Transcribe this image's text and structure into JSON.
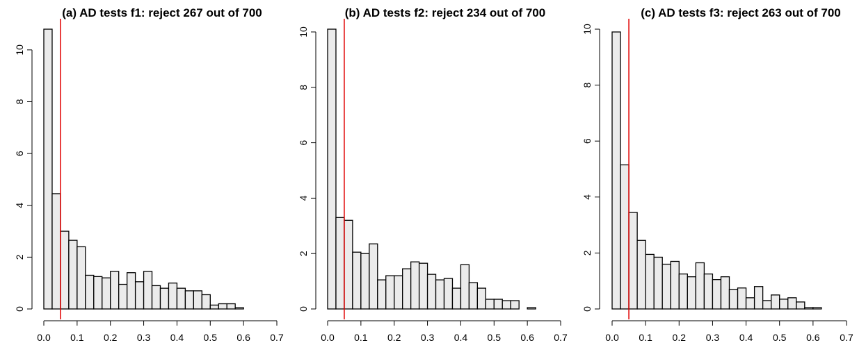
{
  "chart_data": [
    {
      "type": "bar",
      "subtype": "histogram",
      "title": "(a) AD tests f1: reject 267 out of 700",
      "xlabel": "",
      "ylabel": "",
      "bin_width": 0.025,
      "bin_start": 0.0,
      "values": [
        10.8,
        4.45,
        3.0,
        2.65,
        2.4,
        1.3,
        1.25,
        1.2,
        1.45,
        0.95,
        1.4,
        1.05,
        1.45,
        0.9,
        0.8,
        1.0,
        0.8,
        0.7,
        0.7,
        0.55,
        0.15,
        0.2,
        0.2,
        0.05
      ],
      "xlim": [
        0,
        0.7
      ],
      "ylim": [
        0,
        10.8
      ],
      "xticks": [
        "0.0",
        "0.1",
        "0.2",
        "0.3",
        "0.4",
        "0.5",
        "0.6",
        "0.7"
      ],
      "yticks": [
        "0",
        "2",
        "4",
        "6",
        "8",
        "10"
      ],
      "reference_line_x": 0.05,
      "reference_line_color": "#e00000",
      "bar_fill": "#ebebeb"
    },
    {
      "type": "bar",
      "subtype": "histogram",
      "title": "(b) AD tests f2: reject 234 out of 700",
      "xlabel": "",
      "ylabel": "",
      "bin_width": 0.025,
      "bin_start": 0.0,
      "values": [
        10.1,
        3.3,
        3.2,
        2.05,
        2.0,
        2.35,
        1.05,
        1.2,
        1.2,
        1.45,
        1.7,
        1.65,
        1.25,
        1.05,
        1.1,
        0.75,
        1.6,
        0.95,
        0.75,
        0.35,
        0.35,
        0.3,
        0.3,
        0.0,
        0.05
      ],
      "xlim": [
        0,
        0.7
      ],
      "ylim": [
        0,
        10.1
      ],
      "xticks": [
        "0.0",
        "0.1",
        "0.2",
        "0.3",
        "0.4",
        "0.5",
        "0.6",
        "0.7"
      ],
      "yticks": [
        "0",
        "2",
        "4",
        "6",
        "8",
        "10"
      ],
      "reference_line_x": 0.05,
      "reference_line_color": "#e00000",
      "bar_fill": "#ebebeb"
    },
    {
      "type": "bar",
      "subtype": "histogram",
      "title": "(c) AD tests f3: reject 263 out of 700",
      "xlabel": "",
      "ylabel": "",
      "bin_width": 0.025,
      "bin_start": 0.0,
      "values": [
        9.9,
        5.15,
        3.45,
        2.45,
        1.95,
        1.85,
        1.6,
        1.7,
        1.25,
        1.15,
        1.65,
        1.25,
        1.05,
        1.15,
        0.7,
        0.75,
        0.4,
        0.8,
        0.3,
        0.5,
        0.35,
        0.4,
        0.25,
        0.05,
        0.05
      ],
      "xlim": [
        0,
        0.7
      ],
      "ylim": [
        0,
        10
      ],
      "xticks": [
        "0.0",
        "0.1",
        "0.2",
        "0.3",
        "0.4",
        "0.5",
        "0.6",
        "0.7"
      ],
      "yticks": [
        "0",
        "2",
        "4",
        "6",
        "8",
        "10"
      ],
      "reference_line_x": 0.05,
      "reference_line_color": "#e00000",
      "bar_fill": "#ebebeb"
    }
  ]
}
